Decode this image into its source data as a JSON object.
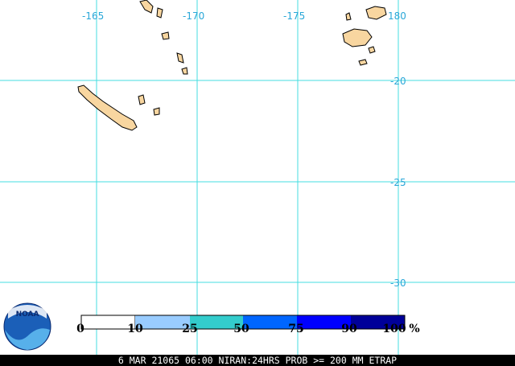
{
  "map": {
    "longitude_labels": [
      "-165",
      "-170",
      "-175",
      "180"
    ],
    "latitude_labels": [
      "-20",
      "-25",
      "-30"
    ],
    "scale": {
      "labels": [
        "0",
        "10",
        "25",
        "50",
        "75",
        "90",
        "100"
      ],
      "unit": "%"
    },
    "caption": "6 MAR 21065 06:00 NIRAN:24HRS PROB >= 200 MM ETRAP",
    "logo": "NOAA"
  }
}
